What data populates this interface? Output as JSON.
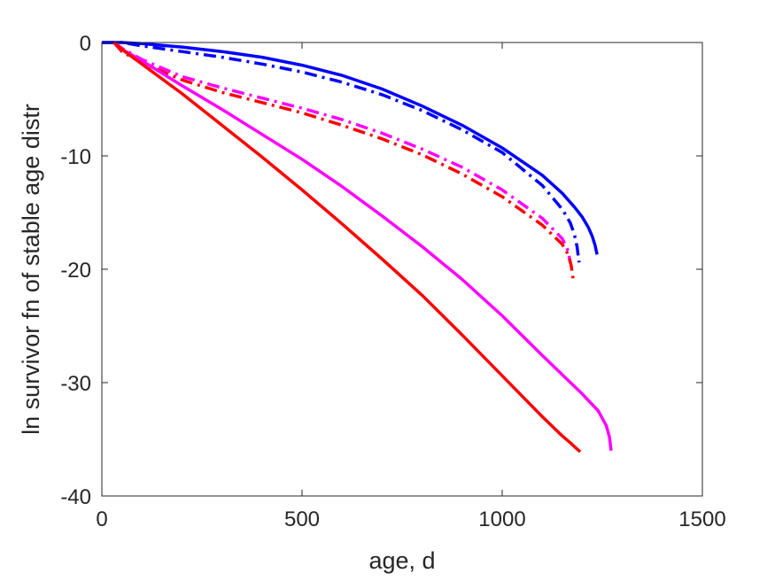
{
  "chart_data": {
    "type": "line",
    "title": "",
    "xlabel": "age, d",
    "ylabel": "ln survivor fn of stable age distr",
    "xlim": [
      0,
      1500
    ],
    "ylim": [
      -40,
      0
    ],
    "xticks": [
      0,
      500,
      1000,
      1500
    ],
    "xtick_labels": [
      "0",
      "500",
      "1000",
      "1500"
    ],
    "yticks": [
      -40,
      -30,
      -20,
      -10,
      0
    ],
    "ytick_labels": [
      "-40",
      "-30",
      "-20",
      "-10",
      "0"
    ],
    "grid": false,
    "legend": "none",
    "series": [
      {
        "color": "#0000ff",
        "style": "solid",
        "x": [
          0,
          30,
          50,
          100,
          200,
          300,
          400,
          500,
          600,
          700,
          800,
          900,
          1000,
          1100,
          1150,
          1180,
          1200,
          1215,
          1225,
          1232,
          1237
        ],
        "y": [
          0,
          0,
          0,
          -0.1,
          -0.4,
          -0.8,
          -1.3,
          -2.0,
          -2.9,
          -4.1,
          -5.6,
          -7.3,
          -9.3,
          -11.7,
          -13.3,
          -14.5,
          -15.4,
          -16.3,
          -17.1,
          -17.9,
          -18.7
        ]
      },
      {
        "color": "#0000ff",
        "style": "dashdot",
        "x": [
          0,
          30,
          50,
          100,
          200,
          300,
          400,
          500,
          600,
          700,
          800,
          900,
          1000,
          1100,
          1150,
          1170,
          1180,
          1187,
          1192
        ],
        "y": [
          0,
          0,
          0,
          -0.3,
          -0.8,
          -1.3,
          -1.9,
          -2.6,
          -3.5,
          -4.6,
          -6.0,
          -7.7,
          -9.7,
          -12.6,
          -14.7,
          -15.9,
          -16.9,
          -18.0,
          -19.4
        ]
      },
      {
        "color": "#ff00ff",
        "style": "dashdot",
        "x": [
          30,
          50,
          100,
          200,
          300,
          400,
          500,
          600,
          700,
          800,
          900,
          1000,
          1100,
          1150,
          1165,
          1170
        ],
        "y": [
          0,
          -0.5,
          -1.5,
          -3.0,
          -4.0,
          -4.9,
          -5.8,
          -6.8,
          -8.0,
          -9.4,
          -11.0,
          -13.0,
          -15.5,
          -17.3,
          -18.4,
          -19.4
        ]
      },
      {
        "color": "#ff0000",
        "style": "dashdot",
        "x": [
          30,
          50,
          100,
          200,
          300,
          400,
          500,
          600,
          700,
          800,
          900,
          1000,
          1100,
          1150,
          1165,
          1172,
          1177
        ],
        "y": [
          0,
          -0.8,
          -1.8,
          -3.3,
          -4.4,
          -5.3,
          -6.2,
          -7.3,
          -8.5,
          -9.9,
          -11.6,
          -13.6,
          -16.1,
          -17.8,
          -18.7,
          -19.6,
          -20.8
        ]
      },
      {
        "color": "#ff00ff",
        "style": "solid",
        "x": [
          30,
          50,
          100,
          200,
          300,
          400,
          500,
          600,
          700,
          800,
          900,
          1000,
          1100,
          1200,
          1240,
          1260,
          1268,
          1272
        ],
        "y": [
          0,
          -0.6,
          -1.6,
          -3.8,
          -5.9,
          -8.1,
          -10.3,
          -12.7,
          -15.3,
          -18.0,
          -20.9,
          -24.1,
          -27.6,
          -31.0,
          -32.5,
          -33.8,
          -34.8,
          -36.0
        ]
      },
      {
        "color": "#ff0000",
        "style": "solid",
        "x": [
          30,
          50,
          100,
          200,
          300,
          400,
          500,
          600,
          700,
          800,
          900,
          1000,
          1100,
          1150,
          1170,
          1185,
          1195
        ],
        "y": [
          0,
          -0.6,
          -1.9,
          -4.5,
          -7.3,
          -10.1,
          -13.0,
          -16.0,
          -19.1,
          -22.3,
          -25.8,
          -29.4,
          -33.0,
          -34.7,
          -35.3,
          -35.8,
          -36.1
        ]
      }
    ]
  }
}
